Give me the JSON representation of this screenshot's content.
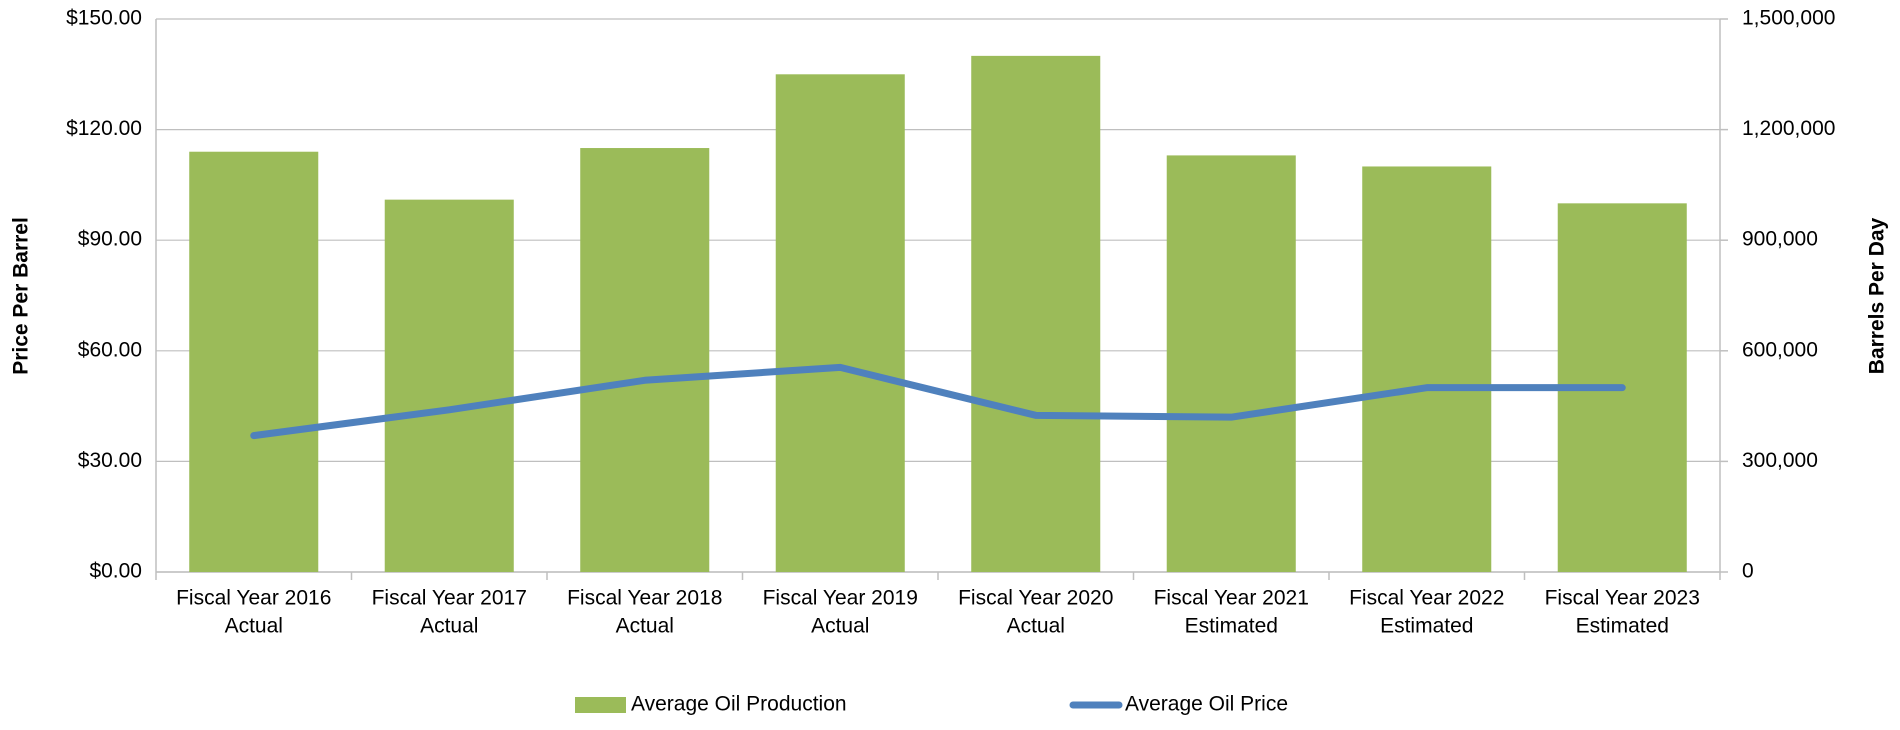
{
  "chart_data": {
    "type": "combo",
    "categories": [
      [
        "Fiscal Year 2016",
        "Actual"
      ],
      [
        "Fiscal Year 2017",
        "Actual"
      ],
      [
        "Fiscal Year 2018",
        "Actual"
      ],
      [
        "Fiscal Year 2019",
        "Actual"
      ],
      [
        "Fiscal Year 2020",
        "Actual"
      ],
      [
        "Fiscal Year 2021",
        "Estimated"
      ],
      [
        "Fiscal Year 2022",
        "Estimated"
      ],
      [
        "Fiscal Year 2023",
        "Estimated"
      ]
    ],
    "series": [
      {
        "name": "Average Oil Production",
        "type": "bar",
        "axis": "y2",
        "color": "#9bbb59",
        "values": [
          1140000,
          1010000,
          1150000,
          1350000,
          1400000,
          1130000,
          1100000,
          1000000
        ]
      },
      {
        "name": "Average Oil Price",
        "type": "line",
        "axis": "y",
        "color": "#4f81bd",
        "values": [
          37,
          44,
          52,
          55.5,
          42.5,
          42,
          50,
          50
        ]
      }
    ],
    "ylabel": "Price Per Barrel",
    "y2label": "Barrels Per Day",
    "ylim": [
      0,
      150
    ],
    "yticks": [
      {
        "value": 0,
        "label": "$0.00"
      },
      {
        "value": 30,
        "label": "$30.00"
      },
      {
        "value": 60,
        "label": "$60.00"
      },
      {
        "value": 90,
        "label": "$90.00"
      },
      {
        "value": 120,
        "label": "$120.00"
      },
      {
        "value": 150,
        "label": "$150.00"
      }
    ],
    "y2lim": [
      0,
      1500000
    ],
    "y2ticks": [
      0,
      {
        "value": 300000,
        "label": "300,000"
      },
      {
        "value": 600000,
        "label": "600,000"
      },
      {
        "value": 900000,
        "label": "900,000"
      },
      {
        "value": 1200000,
        "label": "1,200,000"
      },
      {
        "value": 1500000,
        "label": "1,500,000"
      }
    ],
    "grid": true,
    "legend": "bottom"
  }
}
